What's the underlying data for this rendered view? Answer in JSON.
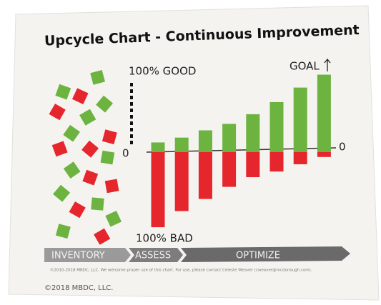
{
  "chart_data": {
    "type": "bar",
    "title": "Upcycle Chart - Continuous Improvement",
    "categories": [
      null,
      null,
      null,
      null,
      null,
      null,
      null,
      null
    ],
    "series": [
      {
        "color": "#6cb33f",
        "values": [
          12,
          18,
          27,
          35,
          47,
          62,
          80,
          96
        ]
      },
      {
        "color": "#e5262c",
        "values": [
          -93,
          -73,
          -58,
          -43,
          -31,
          -24,
          -15,
          -6
        ]
      }
    ],
    "ylim": [
      -100,
      100
    ],
    "yticks": [
      {
        "value": -100,
        "label": "100% BAD"
      },
      0,
      {
        "value": 100,
        "label": "100% GOOD"
      }
    ],
    "annotations": {
      "goal": "GOAL",
      "stages": [
        "INVENTORY",
        "ASSESS",
        "OPTIMIZE"
      ]
    },
    "footer": {
      "notice": "©2010-2018 MBDC, LLC. We welcome proper use of this chart. For use, please contact Celeste Weaver (cweaver@mcdonough.com).",
      "copyright": "©2018 MBDC, LLC."
    }
  }
}
